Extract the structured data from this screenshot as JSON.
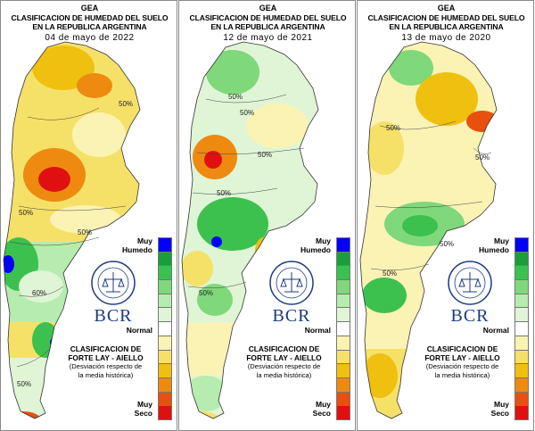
{
  "panels": [
    {
      "org": "GEA",
      "title_line1": "CLASIFICACION DE HUMEDAD DEL SUELO",
      "title_line2": "EN LA REPUBLICA ARGENTINA",
      "date": "04 de mayo de 2022",
      "legend_top": "Muy\nHumedo",
      "legend_mid": "Normal",
      "legend_bottom": "Muy\nSeco",
      "brand": "BCR",
      "seal_text": "BOLSA DE COMERCIO DE ROSARIO",
      "class_line1": "CLASIFICACION DE",
      "class_line2": "FORTE LAY - AIELLO",
      "class_line3": "(Desviación respecto de",
      "class_line4": "la media histórica)",
      "contour_labels": [
        "50%",
        "50%",
        "60%",
        "50%",
        "50%"
      ]
    },
    {
      "org": "GEA",
      "title_line1": "CLASIFICACION DE HUMEDAD DEL SUELO",
      "title_line2": "EN LA REPUBLICA ARGENTINA",
      "date": "12 de mayo de 2021",
      "legend_top": "Muy\nHumedo",
      "legend_mid": "Normal",
      "legend_bottom": "Muy\nSeco",
      "brand": "BCR",
      "seal_text": "BOLSA DE COMERCIO DE ROSARIO",
      "class_line1": "CLASIFICACION DE",
      "class_line2": "FORTE LAY - AIELLO",
      "class_line3": "(Desviación respecto de",
      "class_line4": "la media histórica)",
      "contour_labels": [
        "50%",
        "50%",
        "50%",
        "50%",
        "50%"
      ]
    },
    {
      "org": "GEA",
      "title_line1": "CLASIFICACION DE HUMEDAD DEL SUELO",
      "title_line2": "EN LA REPUBLICA ARGENTINA",
      "date": "13 de mayo de 2020",
      "legend_top": "Muy\nHumedo",
      "legend_mid": "Normal",
      "legend_bottom": "Muy\nSeco",
      "brand": "BCR",
      "seal_text": "BOLSA DE COMERCIO DE ROSARIO",
      "class_line1": "CLASIFICACION DE",
      "class_line2": "FORTE LAY - AIELLO",
      "class_line3": "(Desviación respecto de",
      "class_line4": "la media histórica)",
      "contour_labels": [
        "50%",
        "50%",
        "50%",
        "50%"
      ]
    }
  ],
  "legend_colors": [
    "#0000ff",
    "#1a9e3a",
    "#3cc14e",
    "#7fd87a",
    "#b6ecb0",
    "#dff5d6",
    "#ffffff",
    "#fbf3b4",
    "#f6e168",
    "#f0c010",
    "#ee8a10",
    "#e85010",
    "#e01010"
  ]
}
